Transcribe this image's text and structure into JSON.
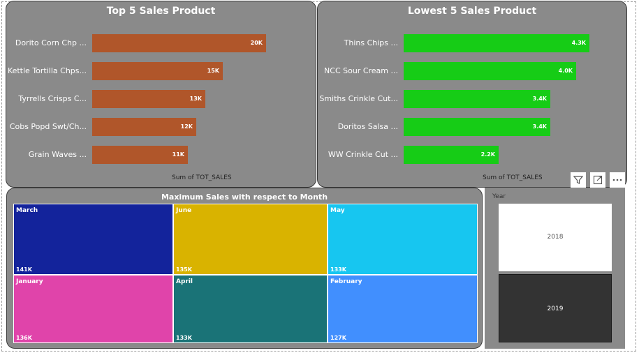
{
  "top5": {
    "title": "Top 5 Sales Product",
    "axis_label": "Sum of TOT_SALES",
    "color": "#b0562a"
  },
  "low5": {
    "title": "Lowest 5 Sales Product",
    "axis_label": "Sum of TOT_SALES",
    "color": "#16cc16"
  },
  "treemap": {
    "title": "Maximum Sales with respect to Month",
    "tiles": [
      {
        "month": "March",
        "value": "141K",
        "color": "#13239b"
      },
      {
        "month": "June",
        "value": "135K",
        "color": "#d9b300"
      },
      {
        "month": "May",
        "value": "133K",
        "color": "#17c6f0"
      },
      {
        "month": "January",
        "value": "136K",
        "color": "#e044aa"
      },
      {
        "month": "April",
        "value": "133K",
        "color": "#1a7377"
      },
      {
        "month": "February",
        "value": "127K",
        "color": "#418ffe"
      }
    ]
  },
  "slicer": {
    "title": "Year",
    "options": [
      {
        "label": "2018",
        "selected": false
      },
      {
        "label": "2019",
        "selected": true
      }
    ]
  },
  "toolbar": {
    "icons": [
      "filter-icon",
      "focus-mode-icon",
      "more-options-icon"
    ]
  },
  "chart_data": [
    {
      "type": "bar",
      "orientation": "horizontal",
      "title": "Top 5 Sales Product",
      "xlabel": "Sum of TOT_SALES",
      "categories": [
        "Dorito Corn Chp ...",
        "Kettle Tortilla Chps...",
        "Tyrrells Crisps C...",
        "Cobs Popd Swt/Ch...",
        "Grain Waves ..."
      ],
      "values": [
        20000,
        15000,
        13000,
        12000,
        11000
      ],
      "value_labels": [
        "20K",
        "15K",
        "13K",
        "12K",
        "11K"
      ],
      "color": "#b0562a"
    },
    {
      "type": "bar",
      "orientation": "horizontal",
      "title": "Lowest 5 Sales Product",
      "xlabel": "Sum of TOT_SALES",
      "categories": [
        "Thins Chips ...",
        "NCC Sour Cream ...",
        "Smiths Crinkle Cut...",
        "Doritos Salsa ...",
        "WW Crinkle Cut ..."
      ],
      "values": [
        4300,
        4000,
        3400,
        3400,
        2200
      ],
      "value_labels": [
        "4.3K",
        "4.0K",
        "3.4K",
        "3.4K",
        "2.2K"
      ],
      "color": "#16cc16"
    }
  ]
}
